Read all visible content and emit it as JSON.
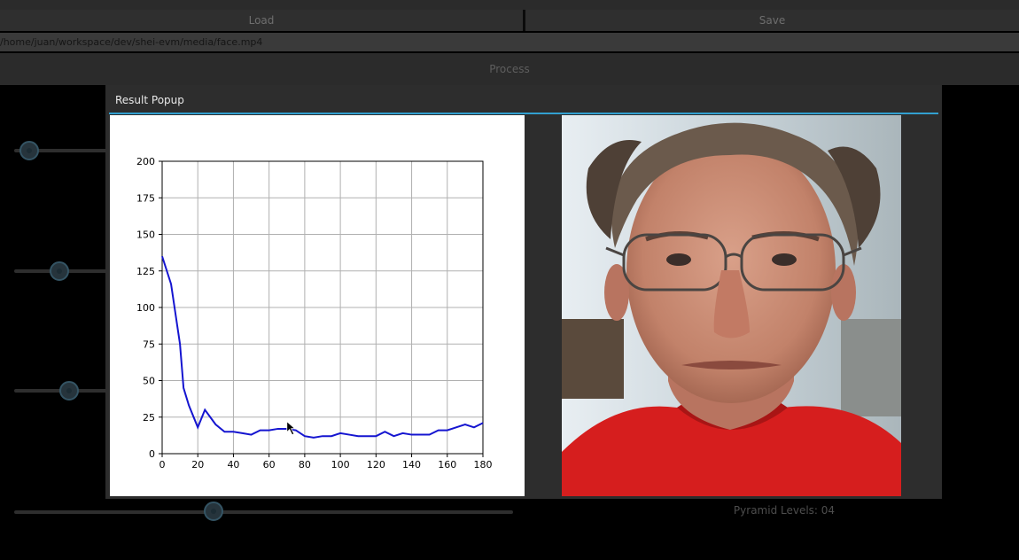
{
  "window": {
    "title": ""
  },
  "toolbar": {
    "load_label": "Load",
    "save_label": "Save",
    "process_label": "Process"
  },
  "file": {
    "path": "/home/juan/workspace/dev/shei-evm/media/face.mp4"
  },
  "controls": {
    "sliders": [
      {
        "name": "slider-1",
        "value_fraction": 0.1
      },
      {
        "name": "slider-2",
        "value_fraction": 0.34
      },
      {
        "name": "slider-3",
        "value_fraction": 0.44
      },
      {
        "name": "pyramid-levels-slider",
        "value_fraction": 0.4
      }
    ],
    "pyramid_levels_label": "Pyramid Levels: 04"
  },
  "popup": {
    "title": "Result Popup",
    "accent": "#32a0d0"
  },
  "chart_data": {
    "type": "line",
    "title": "",
    "xlabel": "",
    "ylabel": "",
    "xlim": [
      0,
      180
    ],
    "ylim": [
      0,
      200
    ],
    "xticks": [
      0,
      20,
      40,
      60,
      80,
      100,
      120,
      140,
      160,
      180
    ],
    "yticks": [
      0,
      25,
      50,
      75,
      100,
      125,
      150,
      175,
      200
    ],
    "grid": true,
    "series": [
      {
        "color": "#1515d0",
        "x": [
          0,
          5,
          10,
          12,
          15,
          20,
          24,
          30,
          35,
          40,
          45,
          50,
          55,
          60,
          65,
          70,
          75,
          80,
          85,
          90,
          95,
          100,
          105,
          110,
          115,
          120,
          125,
          130,
          135,
          140,
          145,
          150,
          155,
          160,
          165,
          170,
          175,
          180
        ],
        "y": [
          135,
          116,
          75,
          45,
          33,
          18,
          30,
          20,
          15,
          15,
          14,
          13,
          16,
          16,
          17,
          17,
          16,
          12,
          11,
          12,
          12,
          14,
          13,
          12,
          12,
          12,
          15,
          12,
          14,
          13,
          13,
          13,
          16,
          16,
          18,
          20,
          18,
          21
        ]
      }
    ]
  }
}
